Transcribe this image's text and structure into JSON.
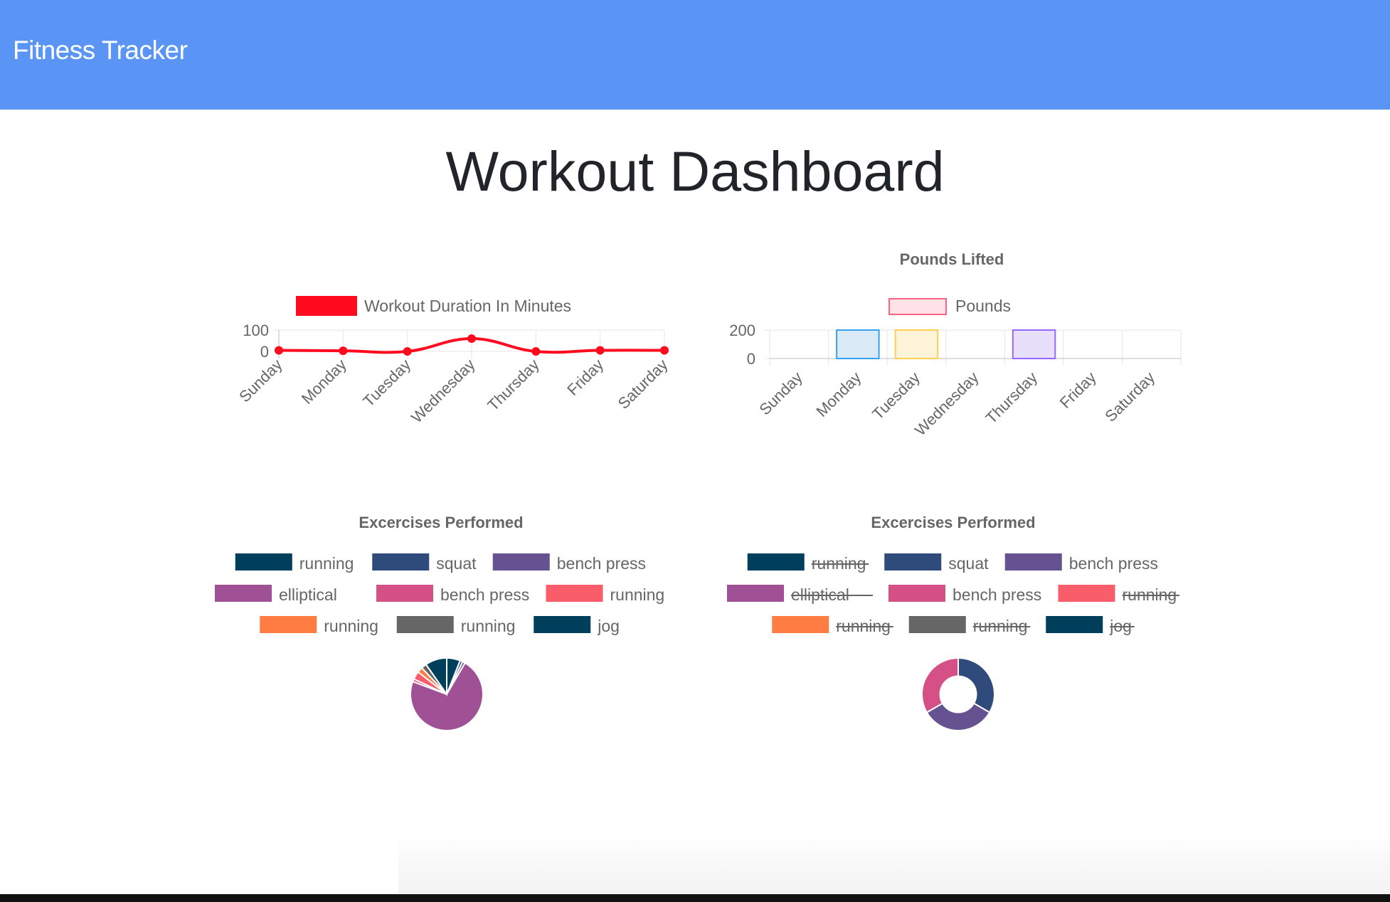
{
  "navbar": {
    "brand": "Fitness Tracker"
  },
  "page": {
    "title": "Workout Dashboard"
  },
  "colors": {
    "navbar": "#5a95f5",
    "line": "#ff0a1f",
    "palette": [
      "#003f5c",
      "#2f4b7c",
      "#665191",
      "#a05195",
      "#d45087",
      "#f95d6a",
      "#ff7c43",
      "#666666",
      "#003f5c"
    ]
  },
  "chart_data": [
    {
      "type": "line",
      "title": "",
      "categories": [
        "Sunday",
        "Monday",
        "Tuesday",
        "Wednesday",
        "Thursday",
        "Friday",
        "Saturday"
      ],
      "series": [
        {
          "name": "Workout Duration In Minutes",
          "values": [
            5,
            3,
            0,
            60,
            0,
            5,
            5
          ]
        }
      ],
      "yticks": [
        "100",
        "0"
      ],
      "ylim": [
        0,
        100
      ],
      "legend": "top",
      "grid": true
    },
    {
      "type": "bar",
      "title": "Pounds Lifted",
      "categories": [
        "Sunday",
        "Monday",
        "Tuesday",
        "Wednesday",
        "Thursday",
        "Friday",
        "Saturday"
      ],
      "series": [
        {
          "name": "Pounds",
          "values": [
            0,
            200,
            200,
            0,
            200,
            0,
            0
          ]
        }
      ],
      "bar_fills": [
        "#fde2e8",
        "#dbeaf7",
        "#fdf3d9",
        "#e0f3f3",
        "#e8e0fb",
        "#ffe9d6",
        "#f0f0f1"
      ],
      "bar_strokes": [
        "#ff6384",
        "#36a2eb",
        "#ffce56",
        "#4bc0c0",
        "#9966ff",
        "#ff9f40",
        "#c9cbcf"
      ],
      "yticks": [
        "200",
        "0"
      ],
      "ylim": [
        0,
        200
      ],
      "legend": "top",
      "grid": true
    },
    {
      "type": "pie",
      "title": "Excercises Performed",
      "labels": [
        "running",
        "squat",
        "bench press",
        "elliptical",
        "bench press",
        "running",
        "running",
        "running",
        "jog"
      ],
      "values": [
        5,
        1,
        1,
        60,
        1,
        3,
        2,
        2,
        8
      ],
      "legend_struck": [
        false,
        false,
        false,
        false,
        false,
        false,
        false,
        false,
        false
      ]
    },
    {
      "type": "doughnut",
      "title": "Excercises Performed",
      "labels": [
        "running",
        "squat",
        "bench press",
        "elliptical",
        "bench press",
        "running",
        "running",
        "running",
        "jog"
      ],
      "values": [
        0,
        200,
        200,
        0,
        200,
        0,
        0,
        0,
        0
      ],
      "legend_struck": [
        true,
        false,
        false,
        true,
        false,
        true,
        true,
        true,
        true
      ]
    }
  ]
}
